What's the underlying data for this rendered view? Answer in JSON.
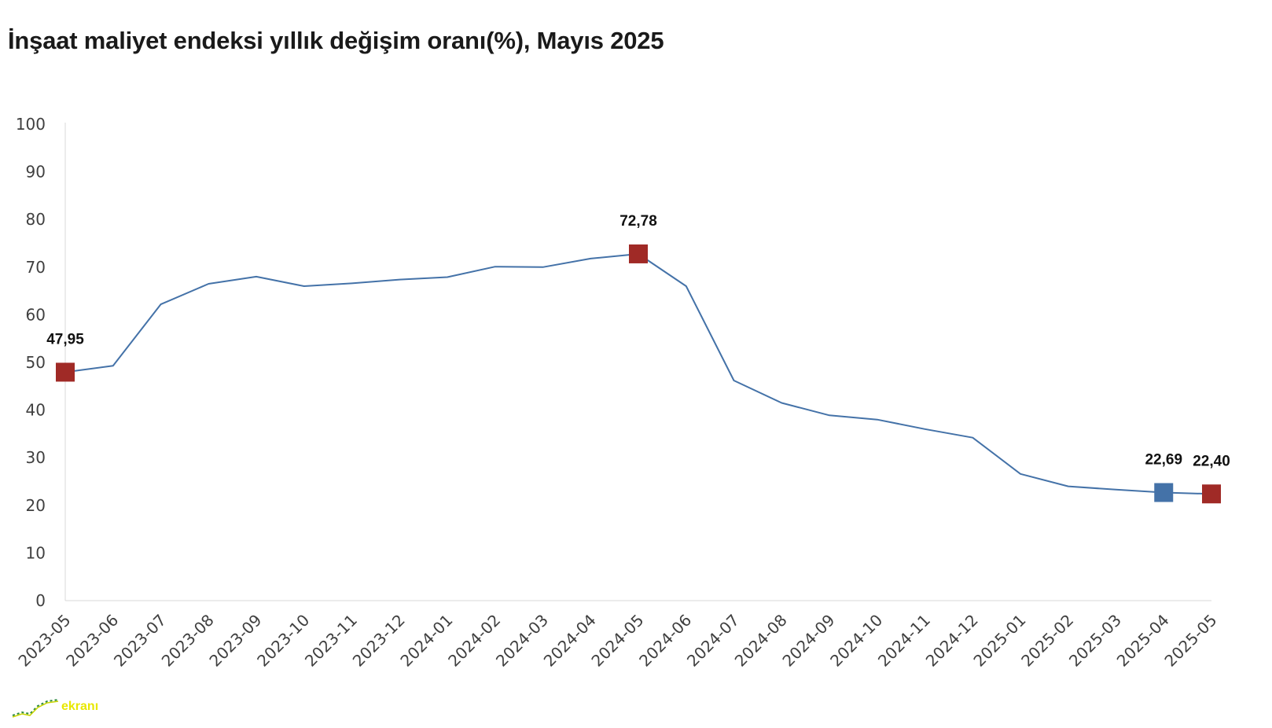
{
  "title": "İnşaat maliyet endeksi yıllık değişim oranı(%), Mayıs 2025",
  "watermark": {
    "text": "ekranı",
    "icon": "chart-line-icon"
  },
  "colors": {
    "line": "#4472a8",
    "marker_red": "#a02a26",
    "marker_blue": "#4472a8",
    "axis": "#d9d9d9"
  },
  "chart_data": {
    "type": "line",
    "title": "İnşaat maliyet endeksi yıllık değişim oranı(%), Mayıs 2025",
    "xlabel": "",
    "ylabel": "",
    "ylim": [
      0,
      100
    ],
    "yticks": [
      "0",
      "10",
      "20",
      "30",
      "40",
      "50",
      "60",
      "70",
      "80",
      "90",
      "100"
    ],
    "grid": false,
    "legend": "none",
    "categories": [
      "2023-05",
      "2023-06",
      "2023-07",
      "2023-08",
      "2023-09",
      "2023-10",
      "2023-11",
      "2023-12",
      "2024-01",
      "2024-02",
      "2024-03",
      "2024-04",
      "2024-05",
      "2024-06",
      "2024-07",
      "2024-08",
      "2024-09",
      "2024-10",
      "2024-11",
      "2024-12",
      "2025-01",
      "2025-02",
      "2025-03",
      "2025-04",
      "2025-05"
    ],
    "series": [
      {
        "values": [
          47.95,
          49.3,
          62.2,
          66.5,
          68.0,
          66.0,
          66.6,
          67.4,
          67.9,
          70.1,
          70.0,
          71.8,
          72.78,
          66.0,
          46.2,
          41.5,
          38.9,
          38.0,
          36.0,
          34.2,
          26.6,
          24.0,
          23.3,
          22.69,
          22.4
        ]
      }
    ],
    "highlighted_points": [
      {
        "category": "2023-05",
        "value": 47.95,
        "label": "47,95",
        "color": "red"
      },
      {
        "category": "2024-05",
        "value": 72.78,
        "label": "72,78",
        "color": "red"
      },
      {
        "category": "2025-04",
        "value": 22.69,
        "label": "22,69",
        "color": "blue"
      },
      {
        "category": "2025-05",
        "value": 22.4,
        "label": "22,40",
        "color": "red"
      }
    ]
  }
}
